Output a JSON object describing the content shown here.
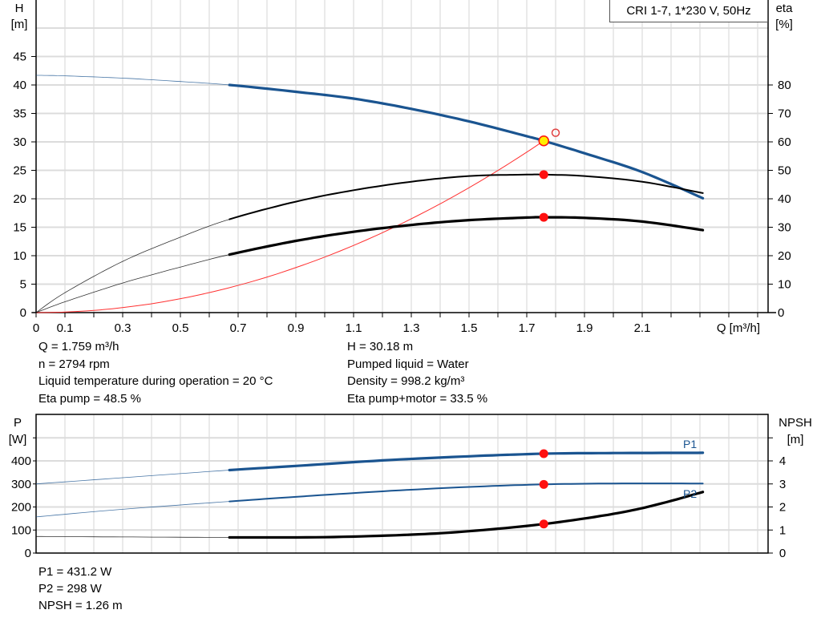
{
  "chart_data": [
    {
      "type": "line",
      "title": "",
      "legend_text": "CRI 1-7, 1*230 V, 50Hz",
      "xlabel": "Q [m³/h]",
      "ylabel_left": [
        "H",
        "[m]"
      ],
      "ylabel_right": [
        "eta",
        "[%]"
      ],
      "xlim": [
        0,
        2.536
      ],
      "ylim_left": [
        0,
        55
      ],
      "ylim_right": [
        0,
        110
      ],
      "grid": true,
      "x_ticks": [
        "0",
        "0.1",
        "0.3",
        "0.5",
        "0.7",
        "0.9",
        "1.1",
        "1.3",
        "1.5",
        "1.7",
        "1.9",
        "2.1"
      ],
      "y_ticks_left": [
        0,
        5,
        10,
        15,
        20,
        25,
        30,
        35,
        40,
        45
      ],
      "y_ticks_right": [
        0,
        10,
        20,
        30,
        40,
        50,
        60,
        70,
        80
      ],
      "series": [
        {
          "id": "H",
          "axis": "left",
          "color": "#1a5490",
          "thick_from": 0.67,
          "x": [
            0,
            0.1,
            0.3,
            0.5,
            0.67,
            0.9,
            1.1,
            1.3,
            1.5,
            1.7,
            1.759,
            1.9,
            2.1,
            2.31
          ],
          "y": [
            41.7,
            41.6,
            41.2,
            40.6,
            40.0,
            38.8,
            37.6,
            35.8,
            33.6,
            31.0,
            30.18,
            28.0,
            24.7,
            20.1
          ]
        },
        {
          "id": "eta_pump",
          "axis": "right",
          "color": "#000000",
          "thick_from": 0.67,
          "x": [
            0,
            0.1,
            0.3,
            0.5,
            0.67,
            0.9,
            1.1,
            1.3,
            1.5,
            1.7,
            1.759,
            1.9,
            2.1,
            2.31
          ],
          "y": [
            0,
            7,
            18,
            26.5,
            32.8,
            39,
            43,
            46,
            48,
            48.5,
            48.5,
            48,
            46,
            42
          ]
        },
        {
          "id": "eta_pump_motor",
          "axis": "right",
          "color": "#000000",
          "thick_from": 0.67,
          "x": [
            0,
            0.1,
            0.3,
            0.5,
            0.67,
            0.9,
            1.1,
            1.3,
            1.5,
            1.7,
            1.759,
            1.9,
            2.1,
            2.31
          ],
          "y": [
            0,
            3.8,
            10.4,
            16,
            20.4,
            25.2,
            28.4,
            30.8,
            32.5,
            33.4,
            33.5,
            33.3,
            32,
            29
          ]
        },
        {
          "id": "system",
          "axis": "left",
          "color": "#ff3030",
          "type": "quadratic",
          "x_end": 1.759,
          "y_end": 30.18
        }
      ],
      "operating_point": {
        "q": 1.759,
        "h": 30.18,
        "eta_pump": 48.5,
        "eta_pump_motor": 33.5
      },
      "requested_point": {
        "q": 1.8,
        "h": 31.6
      }
    },
    {
      "type": "line",
      "title": "",
      "ylabel_left": [
        "P",
        "[W]"
      ],
      "ylabel_right": [
        "NPSH",
        "[m]"
      ],
      "xlim": [
        0,
        2.536
      ],
      "ylim_left": [
        0,
        600
      ],
      "ylim_right": [
        0,
        6
      ],
      "grid": true,
      "y_ticks_left": [
        0,
        100,
        200,
        300,
        400
      ],
      "y_ticks_right": [
        0,
        1,
        2,
        3,
        4
      ],
      "series": [
        {
          "id": "P1",
          "name": "P1",
          "axis": "left",
          "color": "#1a5490",
          "thick_from": 0.67,
          "x": [
            0,
            0.3,
            0.67,
            0.9,
            1.2,
            1.5,
            1.759,
            2.0,
            2.31
          ],
          "y": [
            300,
            327,
            360,
            378,
            402,
            420,
            431.2,
            434,
            435
          ]
        },
        {
          "id": "P2",
          "name": "P2",
          "axis": "left",
          "color": "#1a5490",
          "thick_from": 0.67,
          "x": [
            0,
            0.3,
            0.67,
            0.9,
            1.2,
            1.5,
            1.759,
            2.0,
            2.31
          ],
          "y": [
            157,
            190,
            224,
            244,
            268,
            287,
            298,
            302,
            302
          ]
        },
        {
          "id": "NPSH",
          "axis": "right",
          "color": "#000000",
          "thick_from": 0.67,
          "x": [
            0,
            0.3,
            0.67,
            1.0,
            1.3,
            1.5,
            1.759,
            2.0,
            2.15,
            2.31
          ],
          "y": [
            0.72,
            0.7,
            0.68,
            0.69,
            0.8,
            0.95,
            1.26,
            1.7,
            2.1,
            2.65
          ]
        }
      ],
      "operating_point": {
        "q": 1.759,
        "p1": 431.2,
        "p2": 298,
        "npsh": 1.26
      }
    }
  ],
  "info_top": {
    "left": [
      "Q = 1.759 m³/h",
      "n = 2794 rpm",
      "Liquid temperature during operation = 20 °C",
      "Eta pump = 48.5 %"
    ],
    "right": [
      "H = 30.18 m",
      "Pumped liquid = Water",
      "Density = 998.2 kg/m³",
      "Eta pump+motor = 33.5 %"
    ]
  },
  "info_bottom": [
    "P1 = 431.2 W",
    "P2 = 298 W",
    "NPSH = 1.26 m"
  ]
}
